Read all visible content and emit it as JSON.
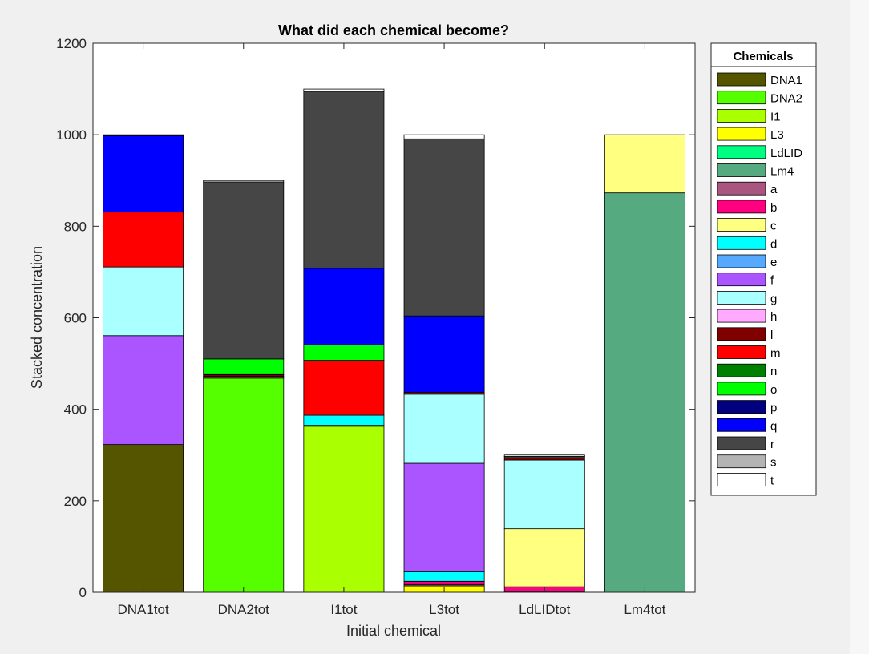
{
  "chart_data": {
    "type": "bar",
    "stacked": true,
    "title": "What did each chemical become?",
    "xlabel": "Initial chemical",
    "ylabel": "Stacked concentration",
    "ylim": [
      0,
      1200
    ],
    "yticks": [
      0,
      200,
      400,
      600,
      800,
      1000,
      1200
    ],
    "grid": false,
    "legend_title": "Chemicals",
    "legend_position": "outside right",
    "categories": [
      "DNA1tot",
      "DNA2tot",
      "I1tot",
      "L3tot",
      "LdLIDtot",
      "Lm4tot"
    ],
    "series": [
      {
        "name": "DNA1",
        "color": "#555500",
        "values": [
          323,
          0,
          0,
          0,
          0,
          0
        ]
      },
      {
        "name": "DNA2",
        "color": "#55ff00",
        "values": [
          0,
          468,
          0,
          0,
          0,
          0
        ]
      },
      {
        "name": "I1",
        "color": "#aaff00",
        "values": [
          0,
          0,
          363,
          0,
          0,
          0
        ]
      },
      {
        "name": "L3",
        "color": "#ffff00",
        "values": [
          0,
          0,
          0,
          14,
          0,
          0
        ]
      },
      {
        "name": "LdLID",
        "color": "#00ff80",
        "values": [
          0,
          0,
          0,
          0,
          0,
          0
        ]
      },
      {
        "name": "Lm4",
        "color": "#55aa80",
        "values": [
          0,
          0,
          0,
          0,
          0,
          873
        ]
      },
      {
        "name": "a",
        "color": "#aa5580",
        "values": [
          0,
          4,
          2,
          3,
          2,
          0
        ]
      },
      {
        "name": "b",
        "color": "#ff0080",
        "values": [
          0,
          0,
          0,
          7,
          10,
          0
        ]
      },
      {
        "name": "c",
        "color": "#ffff80",
        "values": [
          0,
          0,
          0,
          0,
          127,
          127
        ]
      },
      {
        "name": "d",
        "color": "#00ffff",
        "values": [
          0,
          0,
          22,
          21,
          0,
          0
        ]
      },
      {
        "name": "e",
        "color": "#55aaff",
        "values": [
          0,
          0,
          0,
          0,
          0,
          0
        ]
      },
      {
        "name": "f",
        "color": "#aa55ff",
        "values": [
          238,
          0,
          0,
          237,
          0,
          0
        ]
      },
      {
        "name": "g",
        "color": "#aaffff",
        "values": [
          150,
          0,
          0,
          151,
          150,
          0
        ]
      },
      {
        "name": "h",
        "color": "#ffaaff",
        "values": [
          0,
          0,
          0,
          0,
          0,
          0
        ]
      },
      {
        "name": "l",
        "color": "#800000",
        "values": [
          0,
          4,
          0,
          4,
          5,
          0
        ]
      },
      {
        "name": "m",
        "color": "#ff0000",
        "values": [
          120,
          0,
          120,
          0,
          0,
          0
        ]
      },
      {
        "name": "n",
        "color": "#008000",
        "values": [
          0,
          0,
          0,
          0,
          0,
          0
        ]
      },
      {
        "name": "o",
        "color": "#00ff00",
        "values": [
          0,
          34,
          34,
          0,
          0,
          0
        ]
      },
      {
        "name": "p",
        "color": "#000080",
        "values": [
          0,
          0,
          0,
          0,
          0,
          0
        ]
      },
      {
        "name": "q",
        "color": "#0000ff",
        "values": [
          167,
          0,
          167,
          167,
          0,
          0
        ]
      },
      {
        "name": "r",
        "color": "#464646",
        "values": [
          0,
          387,
          387,
          387,
          3,
          0
        ]
      },
      {
        "name": "s",
        "color": "#b4b4b4",
        "values": [
          0,
          0,
          0,
          0,
          0,
          0
        ]
      },
      {
        "name": "t",
        "color": "#ffffff",
        "values": [
          2,
          3,
          5,
          9,
          3,
          0
        ]
      }
    ]
  }
}
